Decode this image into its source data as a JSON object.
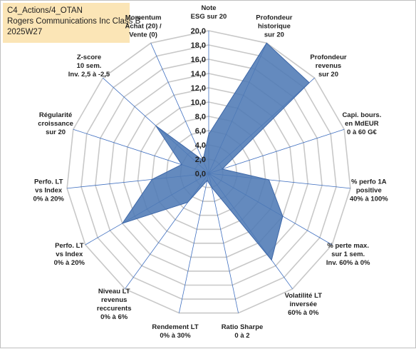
{
  "header": {
    "line1": "C4_Actions/4_OTAN",
    "line2": "Rogers Communications Inc Class B",
    "line3": "2025W27"
  },
  "colors": {
    "fill": "#4f7ab5",
    "stroke": "#3d67a8",
    "grid": "#c8c8c8",
    "spoke": "#3f6fc0",
    "header_bg": "#fbe5b6"
  },
  "chart_data": {
    "type": "radar",
    "r_min": 0,
    "r_max": 20,
    "r_step": 2,
    "tick_labels": [
      "0,0",
      "2,0",
      "4,0",
      "6,0",
      "8,0",
      "10,0",
      "12,0",
      "14,0",
      "16,0",
      "18,0",
      "20,0"
    ],
    "axes": [
      {
        "label": [
          "Note",
          "ESG sur 20"
        ],
        "value": 5.5
      },
      {
        "label": [
          "Profondeur",
          "historique",
          "sur 20"
        ],
        "value": 20.0
      },
      {
        "label": [
          "Profondeur",
          "revenus",
          "sur 20"
        ],
        "value": 19.0
      },
      {
        "label": [
          "Capi. bours.",
          "en MdEUR",
          "0 à 60 G€"
        ],
        "value": 2.0
      },
      {
        "label": [
          "% perfo 1A",
          "positive",
          "40% à 100%"
        ],
        "value": 8.5
      },
      {
        "label": [
          "% perte max.",
          "sur 1 sem.",
          "Inv. 60% à 0%"
        ],
        "value": 12.0
      },
      {
        "label": [
          "Volatilité LT",
          "inversée",
          "60% à 0%"
        ],
        "value": 15.0
      },
      {
        "label": [
          "Ratio Sharpe",
          "0 à 2"
        ],
        "value": 2.0
      },
      {
        "label": [
          "Rendement LT",
          "0% à 30%"
        ],
        "value": 1.0
      },
      {
        "label": [
          "Niveau LT",
          "revenus",
          "reccurents",
          "0% à 6%"
        ],
        "value": 5.0
      },
      {
        "label": [
          "Perfo. LT",
          "vs Index",
          "0% à 20%"
        ],
        "value": 14.0
      },
      {
        "label": [
          "Perfo. LT",
          "vs Index",
          "0% à 20%"
        ],
        "value": 8.0
      },
      {
        "label": [
          "Régularité",
          "croissance",
          "sur 20"
        ],
        "value": 4.0
      },
      {
        "label": [
          "Z-score",
          "10 sem.",
          "Inv. 2,5 à -2,5"
        ],
        "value": 10.0
      },
      {
        "label": [
          "Momentum",
          "Achat (20) /",
          "Vente (0)"
        ],
        "value": 2.0
      }
    ],
    "series": [
      {
        "values": [
          5.5,
          20.0,
          19.0,
          2.0,
          8.5,
          12.0,
          15.0,
          2.0,
          1.0,
          5.0,
          14.0,
          8.0,
          4.0,
          10.0,
          2.0
        ]
      }
    ]
  }
}
